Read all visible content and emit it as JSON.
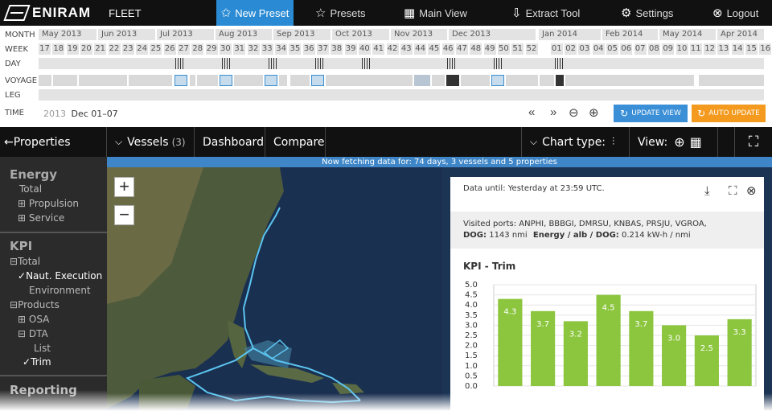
{
  "topbar": {
    "brand": "ENIRAM",
    "product": "FLEET",
    "nav": [
      {
        "label": "New Preset",
        "icon": "star-plus-icon"
      },
      {
        "label": "Presets",
        "icon": "star-icon"
      },
      {
        "label": "Main View",
        "icon": "grid-icon"
      },
      {
        "label": "Extract Tool",
        "icon": "extract-icon"
      },
      {
        "label": "Settings",
        "icon": "gear-icon"
      },
      {
        "label": "Logout",
        "icon": "close-circle-icon"
      }
    ]
  },
  "timeline": {
    "labels": {
      "month": "MONTH",
      "week": "WEEK",
      "day": "DAY",
      "voyage": "VOYAGE",
      "leg": "LEG",
      "time": "TIME"
    },
    "months": [
      {
        "label": "May 2013"
      },
      {
        "label": "Jun 2013"
      },
      {
        "label": "Jul 2013"
      },
      {
        "label": "Aug 2013"
      },
      {
        "label": "Sep 2013"
      },
      {
        "label": "Oct 2013"
      },
      {
        "label": "Nov 2013"
      },
      {
        "label": "Dec 2013"
      },
      {
        "label": "Jan 2014"
      },
      {
        "label": "Feb 2014"
      },
      {
        "label": "May 2014"
      },
      {
        "label": "Apr 2014"
      }
    ],
    "weeks": [
      "17",
      "18",
      "19",
      "20",
      "21",
      "22",
      "23",
      "24",
      "25",
      "26",
      "27",
      "28",
      "29",
      "30",
      "31",
      "32",
      "33",
      "34",
      "35",
      "36",
      "37",
      "38",
      "39",
      "40",
      "41",
      "42",
      "43",
      "44",
      "45",
      "46",
      "47",
      "48",
      "49",
      "50",
      "51",
      "52",
      "01",
      "02",
      "03",
      "04",
      "05",
      "06",
      "07",
      "08",
      "09",
      "10",
      "11",
      "12",
      "13",
      "14",
      "15",
      "16"
    ],
    "time_year": "2013",
    "time_range": "Dec 01–07",
    "buttons": {
      "update_view": "UPDATE VIEW",
      "auto_update": "AUTO UPDATE"
    }
  },
  "subnav": {
    "properties": "←Properties",
    "vessels": "Vessels",
    "vessels_count": "(3)",
    "dashboard": "Dashboard",
    "compare": "Compare",
    "chart_type": "Chart type:",
    "view": "View:"
  },
  "banner": "Now fetching data for: 74 days, 3 vessels and 5 properties",
  "sidebar": {
    "sections": [
      {
        "title": "Energy",
        "items": [
          {
            "label": "Total",
            "prefix": ""
          },
          {
            "label": "Propulsion",
            "prefix": "⊞"
          },
          {
            "label": "Service",
            "prefix": "⊞"
          }
        ]
      },
      {
        "title": "KPI",
        "items": [
          {
            "label": "Total",
            "prefix": "⊟"
          },
          {
            "label": "Naut. Execution",
            "prefix": "✓"
          },
          {
            "label": "Environment",
            "prefix": ""
          },
          {
            "label": "Products",
            "prefix": "⊟"
          },
          {
            "label": "OSA",
            "prefix": "⊞"
          },
          {
            "label": "DTA",
            "prefix": "⊟"
          },
          {
            "label": "List",
            "prefix": ""
          },
          {
            "label": "Trim",
            "prefix": "✓"
          }
        ]
      },
      {
        "title": "Reporting",
        "items": []
      }
    ]
  },
  "map": {
    "zoom_in": "+",
    "zoom_out": "−"
  },
  "panel": {
    "data_until_label": "Data until:",
    "data_until_value": "Yesterday at 23:59 UTC.",
    "ports_label": "Visited ports:",
    "ports_value": "ANPHI, BBBGI, DMRSU, KNBAS, PRSJU, VGROA,",
    "dog_label": "DOG:",
    "dog_value": "1143 nmi",
    "energy_label": "Energy / alb / DOG:",
    "energy_value": "0.214 kW-h / nmi"
  },
  "chart_data": {
    "type": "bar",
    "title": "KPI - Trim",
    "values": [
      4.3,
      3.7,
      3.2,
      4.5,
      3.7,
      3.0,
      2.5,
      3.3
    ],
    "value_labels": [
      "4.3",
      "3.7",
      "3.2",
      "4.5",
      "3.7",
      "3.0",
      "2.5",
      "3.3"
    ],
    "yticks": [
      "5.0",
      "4.5",
      "4.0",
      "3.5",
      "3.0",
      "2.5",
      "2.0",
      "1.5",
      "1.0",
      "0.5",
      "0.0"
    ],
    "ylim": [
      0,
      5.0
    ],
    "color": "#8cc63f",
    "grid": true
  }
}
